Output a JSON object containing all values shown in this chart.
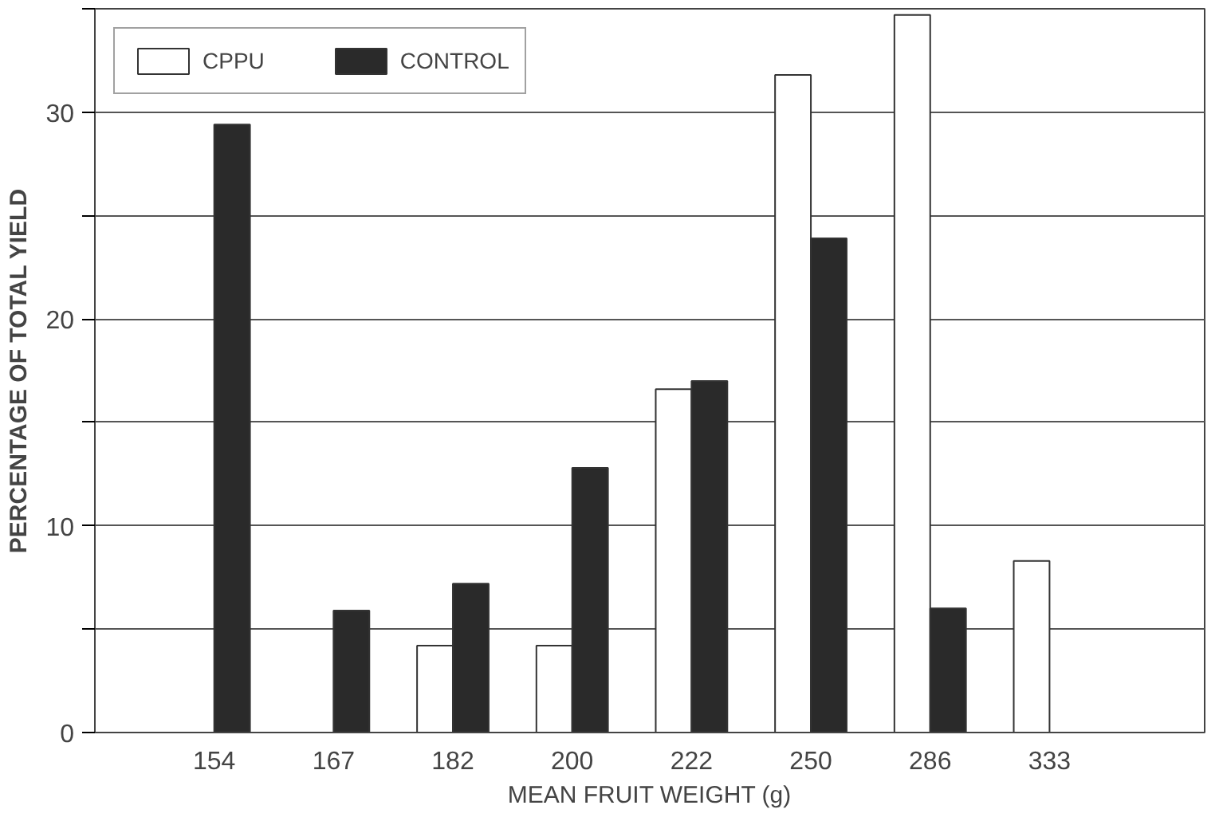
{
  "chart_data": {
    "type": "bar",
    "xlabel": "MEAN FRUIT WEIGHT (g)",
    "ylabel": "PERCENTAGE OF TOTAL YIELD",
    "categories": [
      "154",
      "167",
      "182",
      "200",
      "222",
      "250",
      "286",
      "333"
    ],
    "series": [
      {
        "name": "CPPU",
        "color": "#ffffff",
        "values": [
          0,
          0,
          4.2,
          4.2,
          16.6,
          31.8,
          34.7,
          8.3
        ]
      },
      {
        "name": "CONTROL",
        "color": "#2a2a2a",
        "values": [
          29.4,
          5.9,
          7.2,
          12.8,
          17.0,
          23.9,
          6.0,
          0
        ]
      }
    ],
    "ylim": [
      0,
      35
    ],
    "yticks": [
      0,
      {
        "value": 5,
        "label": null
      },
      10,
      {
        "value": 15,
        "label": null
      },
      20,
      {
        "value": 25,
        "label": null
      },
      30,
      {
        "value": 35,
        "label": null
      }
    ],
    "grid": "y",
    "legend": "top left"
  }
}
